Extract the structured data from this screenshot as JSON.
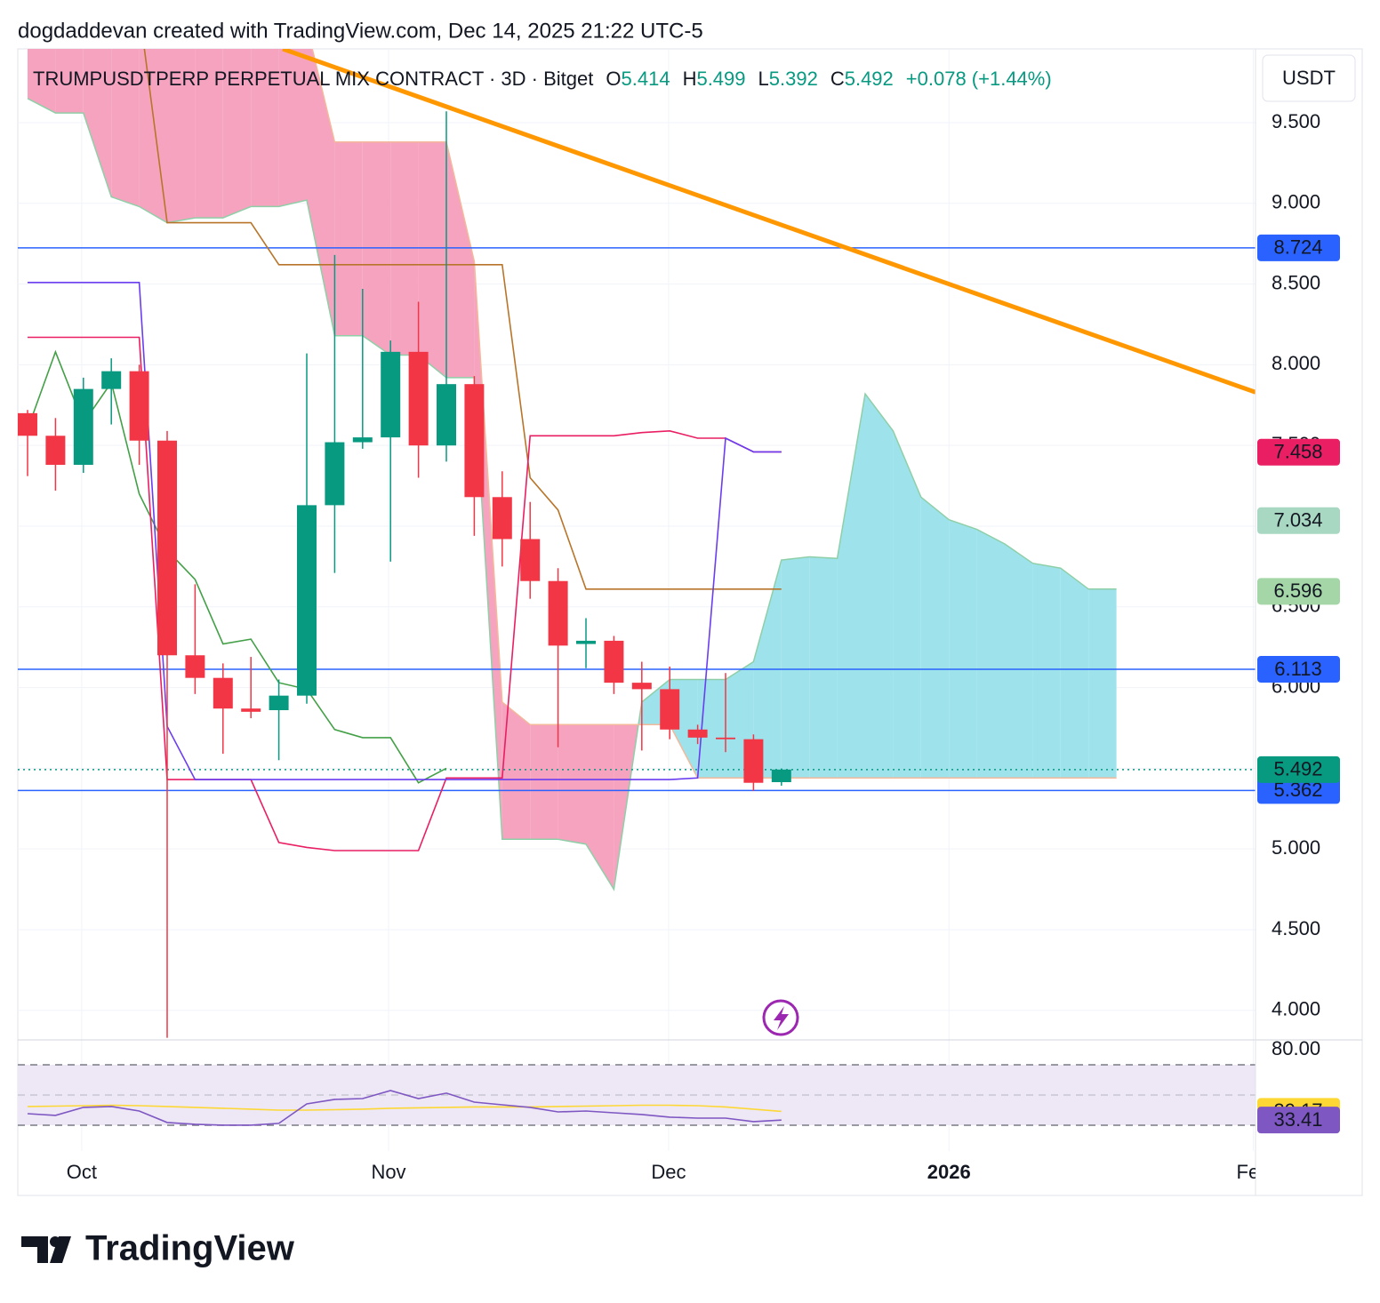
{
  "header": "dogdaddevan created with TradingView.com, Dec 14, 2025 21:22 UTC-5",
  "footer": {
    "logo": "TradingView"
  },
  "chart_data": {
    "type": "candlestick",
    "title": "TRUMPUSDTPERP PERPETUAL MIX CONTRACT · 3D · Bitget",
    "ohlc_letters": [
      "O",
      "H",
      "L",
      "C"
    ],
    "change": "+0.078 (+1.44%)",
    "currency": "USDT",
    "up_color": "#089981",
    "down_color": "#f23645",
    "x": [
      0,
      1,
      2,
      3,
      4,
      5,
      6,
      7,
      8,
      9,
      10,
      11,
      12,
      13,
      14,
      15,
      16,
      17,
      18,
      19,
      20,
      21,
      22,
      23,
      24,
      25,
      26,
      27
    ],
    "open": [
      7.7,
      7.56,
      7.38,
      7.85,
      7.96,
      7.53,
      6.2,
      6.06,
      5.87,
      5.86,
      5.95,
      7.13,
      7.52,
      7.55,
      8.08,
      7.5,
      7.88,
      7.18,
      6.92,
      6.66,
      6.27,
      6.29,
      6.03,
      5.99,
      5.74,
      5.69,
      5.68,
      5.414
    ],
    "high": [
      7.72,
      7.67,
      7.92,
      8.04,
      8.0,
      7.59,
      6.64,
      6.15,
      6.19,
      6.05,
      8.07,
      8.68,
      8.47,
      8.15,
      8.39,
      9.57,
      7.93,
      7.34,
      7.15,
      6.74,
      6.43,
      6.32,
      6.16,
      6.13,
      5.77,
      6.09,
      5.71,
      5.499
    ],
    "low": [
      7.31,
      7.22,
      7.33,
      7.63,
      7.38,
      3.83,
      5.96,
      5.59,
      5.81,
      5.55,
      5.9,
      6.71,
      7.48,
      6.78,
      7.3,
      7.4,
      6.94,
      6.75,
      6.55,
      5.63,
      6.12,
      5.96,
      5.61,
      5.68,
      5.65,
      5.6,
      5.36,
      5.392
    ],
    "close": [
      7.56,
      7.38,
      7.85,
      7.96,
      7.53,
      6.2,
      6.06,
      5.87,
      5.85,
      5.95,
      7.13,
      7.52,
      7.55,
      8.08,
      7.5,
      7.88,
      7.18,
      6.92,
      6.66,
      6.26,
      6.29,
      6.03,
      5.99,
      5.74,
      5.69,
      5.68,
      5.41,
      5.492
    ],
    "xlim": [
      -0.35,
      43.98
    ],
    "xticks": [
      {
        "value": 1.94,
        "label": "Oct"
      },
      {
        "value": 12.93,
        "label": "Nov"
      },
      {
        "value": 22.96,
        "label": "Dec"
      },
      {
        "value": 33,
        "label": "2026"
      },
      {
        "value": 43.9,
        "label": "Feb"
      }
    ],
    "ylim": [
      3.817,
      9.957
    ],
    "yticks": [
      {
        "value": 4,
        "label": "4.000"
      },
      {
        "value": 4.5,
        "label": "4.500"
      },
      {
        "value": 5,
        "label": "5.000"
      },
      {
        "value": 5.5,
        "label": "5.500"
      },
      {
        "value": 6,
        "label": "6.000"
      },
      {
        "value": 6.5,
        "label": "6.500"
      },
      {
        "value": 7,
        "label": "7.000"
      },
      {
        "value": 7.5,
        "label": "7.500"
      },
      {
        "value": 8,
        "label": "8.000"
      },
      {
        "value": 8.5,
        "label": "8.500"
      },
      {
        "value": 9,
        "label": "9.000"
      },
      {
        "value": 9.5,
        "label": "9.500"
      }
    ],
    "grid": true,
    "cloud": {
      "x": [
        0,
        1,
        2,
        3,
        4,
        5,
        6,
        7,
        8,
        9,
        10,
        11,
        12,
        13,
        14,
        15,
        16,
        17,
        18,
        19,
        20,
        21,
        22,
        23,
        24,
        25,
        26,
        27,
        28,
        29,
        30,
        31,
        32,
        33,
        34,
        35,
        36,
        37,
        38,
        39
      ],
      "lead_a": [
        9.65,
        9.56,
        9.56,
        9.04,
        8.98,
        8.88,
        8.91,
        8.91,
        8.98,
        8.98,
        9.02,
        8.18,
        8.18,
        8.06,
        8.06,
        7.92,
        7.92,
        5.06,
        5.06,
        5.06,
        5.03,
        4.75,
        5.91,
        6.05,
        6.05,
        6.05,
        6.16,
        6.79,
        6.81,
        6.8,
        7.82,
        7.59,
        7.18,
        7.04,
        6.98,
        6.89,
        6.77,
        6.74,
        6.61,
        6.61
      ],
      "lead_b": [
        10.1,
        10.1,
        10.1,
        10.1,
        10.1,
        10.1,
        10.1,
        10.1,
        10.1,
        10.1,
        10.1,
        9.38,
        9.38,
        9.38,
        9.38,
        9.38,
        8.64,
        5.91,
        5.77,
        5.77,
        5.77,
        5.77,
        5.77,
        5.77,
        5.44,
        5.44,
        5.44,
        5.44,
        5.44,
        5.44,
        5.44,
        5.44,
        5.44,
        5.44,
        5.44,
        5.44,
        5.44,
        5.44,
        5.44,
        5.44
      ],
      "up_color": "#9ee3ec",
      "down_color": "#f6a3bf",
      "lead_a_color": "#8fcfa8",
      "lead_b_color": "#f4b89a"
    },
    "overlays": [
      {
        "color": "#43a047",
        "values": [
          7.6,
          8.08,
          7.64,
          7.89,
          7.2,
          6.85,
          6.67,
          6.27,
          6.3,
          6.03,
          5.99,
          5.74,
          5.69,
          5.69,
          5.41,
          5.5,
          null,
          null,
          null,
          null,
          null,
          null,
          null,
          null,
          null,
          null,
          null,
          null
        ]
      },
      {
        "color": "#b8752a",
        "values": [
          10.2,
          10.2,
          10.2,
          10.2,
          10.2,
          8.88,
          8.88,
          8.88,
          8.88,
          8.62,
          8.62,
          8.62,
          8.62,
          8.62,
          8.62,
          8.62,
          8.62,
          8.62,
          7.3,
          7.1,
          6.61,
          6.61,
          6.61,
          6.61,
          6.61,
          6.61,
          6.61,
          6.61
        ]
      },
      {
        "color": "#e91e63",
        "values": [
          8.17,
          8.17,
          8.17,
          8.17,
          8.17,
          5.43,
          5.43,
          5.43,
          5.43,
          5.04,
          5.01,
          4.99,
          4.99,
          4.99,
          4.99,
          5.44,
          5.44,
          5.44,
          7.56,
          7.56,
          7.56,
          7.56,
          7.58,
          7.59,
          7.545,
          7.545,
          7.46,
          7.46
        ]
      },
      {
        "color": "#6a3df0",
        "values": [
          8.51,
          8.51,
          8.51,
          8.51,
          8.51,
          5.76,
          5.43,
          5.43,
          5.43,
          5.43,
          5.43,
          5.43,
          5.43,
          5.43,
          5.43,
          5.43,
          5.43,
          5.43,
          5.43,
          5.43,
          5.43,
          5.43,
          5.43,
          5.43,
          5.44,
          7.545,
          7.46,
          7.46
        ]
      }
    ],
    "trendlines": [
      {
        "color": "#ff9800",
        "x": [
          9.14,
          43.98
        ],
        "values": [
          9.957,
          7.83
        ]
      }
    ],
    "hlines": [
      {
        "value": 8.724,
        "color": "#2962ff",
        "style": "solid"
      },
      {
        "value": 6.113,
        "color": "#2962ff",
        "style": "solid"
      },
      {
        "value": 5.362,
        "color": "#2962ff",
        "style": "solid"
      },
      {
        "value": 5.492,
        "color": "#089981",
        "style": "dotted"
      }
    ],
    "price_labels": [
      {
        "value": 7.458,
        "color": "#e91e63"
      },
      {
        "value": 7.034,
        "color": "#a8d8c2"
      },
      {
        "value": 6.596,
        "color": "#a5d6a7"
      }
    ],
    "indicator": {
      "type": "line",
      "ylim": [
        12.9,
        85.3
      ],
      "yticks": [
        {
          "value": 80,
          "label": "80.00"
        }
      ],
      "levels": [
        70,
        50,
        30
      ],
      "band": [
        30,
        70
      ],
      "band_color": "#ede7f6",
      "series": [
        {
          "color": "#7e57c2",
          "values": [
            37.6,
            36.5,
            41.8,
            42.4,
            39.4,
            31.8,
            30.6,
            30.0,
            30.0,
            31.2,
            44.1,
            47.1,
            47.6,
            52.9,
            47.6,
            51.2,
            45.3,
            43.5,
            41.8,
            38.8,
            39.4,
            38.2,
            37.1,
            35.3,
            34.7,
            34.7,
            32.4,
            33.41
          ]
        },
        {
          "color": "#fdd835",
          "values": [
            42.4,
            42.6,
            42.9,
            43.2,
            42.9,
            42.4,
            41.8,
            41.2,
            40.6,
            40.0,
            40.0,
            40.3,
            40.6,
            41.2,
            41.5,
            41.8,
            42.1,
            42.1,
            42.1,
            42.4,
            42.6,
            42.9,
            43.2,
            43.2,
            42.9,
            42.1,
            40.6,
            39.17
          ]
        }
      ]
    }
  }
}
